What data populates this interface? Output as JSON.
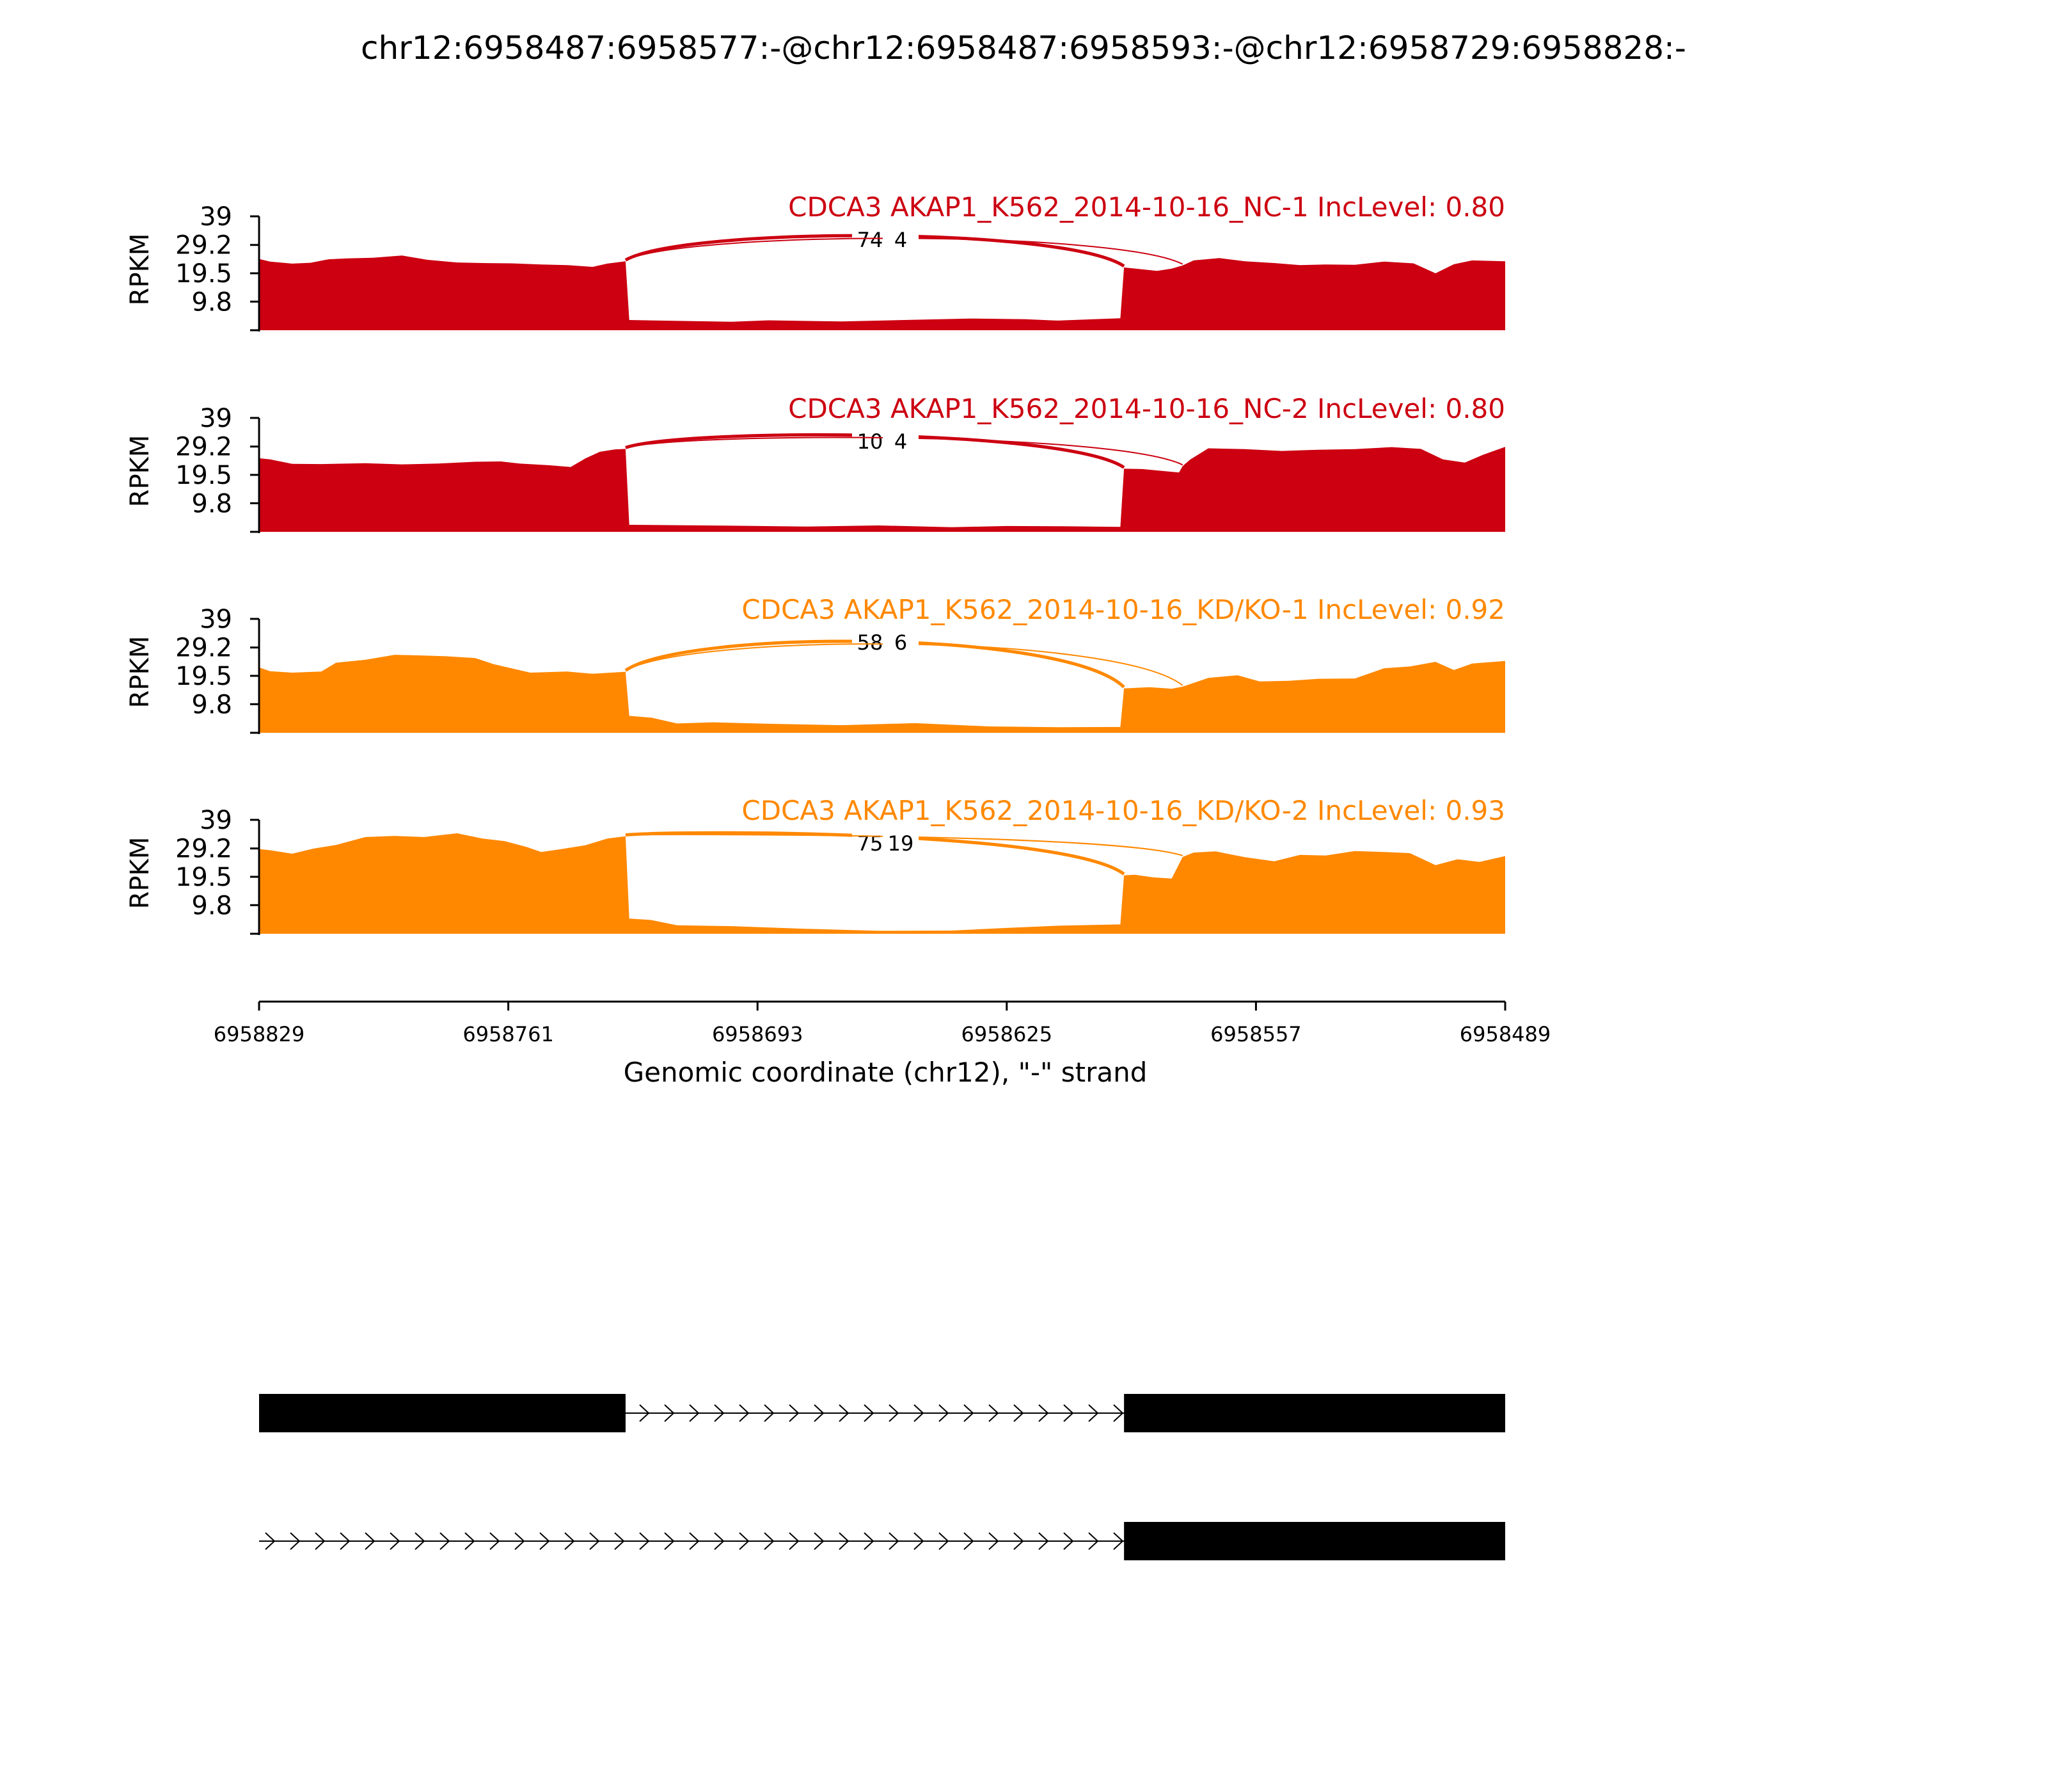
{
  "title": "chr12:6958487:6958577:-@chr12:6958487:6958593:-@chr12:6958729:6958828:-",
  "colors": {
    "nc": "#cc0011",
    "kd": "#ff8800",
    "axis": "#000000",
    "gene_model": "#000000"
  },
  "chart_data": {
    "type": "area",
    "subtype": "sashimi",
    "x": {
      "start": 6958829,
      "end": 6958489,
      "reversed": true,
      "ticks": [
        "6958829",
        "6958761",
        "6958693",
        "6958625",
        "6958557",
        "6958489"
      ],
      "tick_values": [
        6958829,
        6958761,
        6958693,
        6958625,
        6958557,
        6958489
      ]
    },
    "xlabel": "Genomic coordinate (chr12), \"-\" strand",
    "ylabel": "RPKM",
    "yticks": [
      "39",
      "29.2",
      "19.5",
      "9.8"
    ],
    "ytick_values": [
      39,
      29.2,
      19.5,
      9.8
    ],
    "ylim": [
      0,
      39
    ],
    "grid": false,
    "series": [
      {
        "name": "CDCA3 AKAP1_K562_2014-10-16_NC-1 IncLevel: 0.80",
        "color": "#cc0011",
        "coverage": {
          "positions": [
            6958829,
            6958826,
            6958820,
            6958815,
            6958810,
            6958805,
            6958798,
            6958790,
            6958783,
            6958775,
            6958768,
            6958760,
            6958752,
            6958745,
            6958738,
            6958734,
            6958729,
            6958728,
            6958700,
            6958690,
            6958670,
            6958650,
            6958635,
            6958620,
            6958611,
            6958594,
            6958593,
            6958589,
            6958584,
            6958580,
            6958577,
            6958574,
            6958567,
            6958560,
            6958552,
            6958545,
            6958538,
            6958530,
            6958522,
            6958514,
            6958508,
            6958503,
            6958498,
            6958489
          ],
          "values": [
            24.4,
            23.5,
            22.8,
            23.1,
            24.3,
            24.6,
            24.8,
            25.6,
            24.1,
            23.2,
            23.0,
            22.9,
            22.5,
            22.3,
            21.7,
            22.8,
            23.6,
            3.5,
            2.9,
            3.4,
            3.0,
            3.6,
            4.0,
            3.8,
            3.3,
            4.1,
            21.5,
            21.0,
            20.3,
            21.1,
            22.2,
            23.9,
            24.7,
            23.6,
            23.0,
            22.3,
            22.5,
            22.4,
            23.5,
            22.9,
            19.5,
            22.6,
            23.9,
            23.6
          ]
        },
        "junctions": [
          {
            "label": "74",
            "from": 6958729,
            "to": 6958593
          },
          {
            "label": "4",
            "from": 6958729,
            "to": 6958577
          }
        ]
      },
      {
        "name": "CDCA3 AKAP1_K562_2014-10-16_NC-2 IncLevel: 0.80",
        "color": "#cc0011",
        "coverage": {
          "positions": [
            6958829,
            6958826,
            6958820,
            6958812,
            6958800,
            6958790,
            6958780,
            6958770,
            6958763,
            6958758,
            6958750,
            6958744,
            6958740,
            6958736,
            6958732,
            6958729,
            6958728,
            6958700,
            6958680,
            6958660,
            6958640,
            6958625,
            6958610,
            6958594,
            6958593,
            6958588,
            6958582,
            6958578,
            6958577,
            6958575,
            6958570,
            6958560,
            6958550,
            6958540,
            6958530,
            6958520,
            6958512,
            6958506,
            6958500,
            6958495,
            6958489
          ],
          "values": [
            25.2,
            24.8,
            23.3,
            23.2,
            23.5,
            23.1,
            23.4,
            24.0,
            24.1,
            23.4,
            22.8,
            22.2,
            25.1,
            27.4,
            28.2,
            28.4,
            2.4,
            2.1,
            1.8,
            2.2,
            1.6,
            2.0,
            1.9,
            1.7,
            21.6,
            21.5,
            20.8,
            20.3,
            22.5,
            24.7,
            28.6,
            28.3,
            27.7,
            28.1,
            28.3,
            29.0,
            28.4,
            24.8,
            23.7,
            26.4,
            29.1
          ]
        },
        "junctions": [
          {
            "label": "10",
            "from": 6958729,
            "to": 6958593
          },
          {
            "label": "4",
            "from": 6958729,
            "to": 6958577
          }
        ]
      },
      {
        "name": "CDCA3 AKAP1_K562_2014-10-16_KD/KO-1 IncLevel: 0.92",
        "color": "#ff8800",
        "coverage": {
          "positions": [
            6958829,
            6958826,
            6958820,
            6958812,
            6958808,
            6958800,
            6958792,
            6958785,
            6958778,
            6958770,
            6958765,
            6958755,
            6958745,
            6958738,
            6958729,
            6958728,
            6958722,
            6958715,
            6958705,
            6958690,
            6958670,
            6958650,
            6958630,
            6958610,
            6958594,
            6958593,
            6958586,
            6958580,
            6958577,
            6958570,
            6958562,
            6958556,
            6958548,
            6958540,
            6958530,
            6958522,
            6958515,
            6958508,
            6958503,
            6958498,
            6958489
          ],
          "values": [
            22.4,
            21.1,
            20.6,
            21.0,
            24.0,
            25.0,
            26.7,
            26.5,
            26.2,
            25.6,
            23.5,
            20.6,
            21.0,
            20.2,
            20.9,
            5.8,
            5.2,
            3.2,
            3.6,
            3.1,
            2.6,
            3.3,
            2.2,
            1.9,
            2.0,
            15.2,
            15.6,
            15.1,
            15.8,
            18.8,
            19.7,
            17.6,
            17.8,
            18.5,
            18.6,
            22.1,
            22.7,
            24.3,
            21.5,
            23.7,
            24.6
          ]
        },
        "junctions": [
          {
            "label": "58",
            "from": 6958729,
            "to": 6958593
          },
          {
            "label": "6",
            "from": 6958729,
            "to": 6958577
          }
        ]
      },
      {
        "name": "CDCA3 AKAP1_K562_2014-10-16_KD/KO-2 IncLevel: 0.93",
        "color": "#ff8800",
        "coverage": {
          "positions": [
            6958829,
            6958826,
            6958820,
            6958814,
            6958808,
            6958800,
            6958792,
            6958784,
            6958775,
            6958768,
            6958762,
            6958756,
            6958752,
            6958746,
            6958740,
            6958734,
            6958729,
            6958728,
            6958722,
            6958715,
            6958700,
            6958680,
            6958660,
            6958640,
            6958625,
            6958610,
            6958594,
            6958593,
            6958590,
            6958585,
            6958580,
            6958577,
            6958574,
            6958568,
            6958560,
            6958552,
            6958545,
            6958538,
            6958530,
            6958522,
            6958515,
            6958508,
            6958502,
            6958496,
            6958489
          ],
          "values": [
            29.0,
            28.6,
            27.4,
            29.2,
            30.4,
            33.1,
            33.5,
            33.1,
            34.4,
            32.6,
            31.7,
            29.7,
            28.0,
            29.1,
            30.3,
            32.6,
            33.4,
            5.2,
            4.7,
            2.9,
            2.6,
            1.7,
            1.0,
            1.1,
            2.0,
            2.8,
            3.2,
            20.0,
            20.2,
            19.3,
            18.9,
            26.3,
            27.8,
            28.2,
            26.2,
            24.8,
            27.0,
            26.8,
            28.3,
            28.0,
            27.6,
            23.5,
            25.5,
            24.6,
            26.6
          ]
        },
        "junctions": [
          {
            "label": "75",
            "from": 6958729,
            "to": 6958593
          },
          {
            "label": "19",
            "from": 6958729,
            "to": 6958577
          }
        ]
      }
    ],
    "gene_models": [
      {
        "exons": [
          [
            6958829,
            6958729
          ],
          [
            6958593,
            6958489
          ]
        ],
        "strand": "-"
      },
      {
        "exons": [
          [
            6958593,
            6958489
          ]
        ],
        "strand": "-"
      }
    ]
  }
}
